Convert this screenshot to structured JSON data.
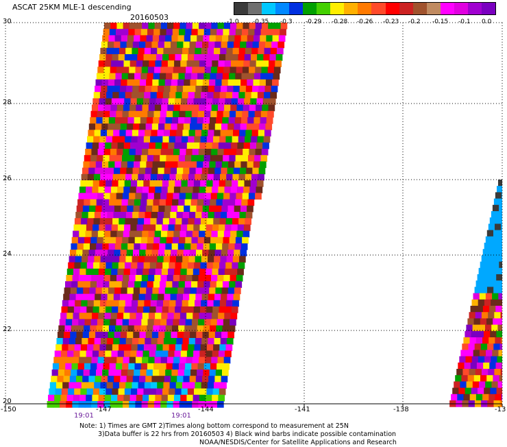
{
  "header": {
    "title": "ASCAT 25KM MLE-1 descending",
    "date": "20160503"
  },
  "colorbar": {
    "colors": [
      "#3a3a3a",
      "#6f6f6f",
      "#00c8ff",
      "#0088ff",
      "#0030e0",
      "#00a000",
      "#44d000",
      "#ffee00",
      "#ffb000",
      "#ff7a00",
      "#ff4a2a",
      "#ff0000",
      "#cc2222",
      "#a0522d",
      "#c08a60",
      "#ff00ff",
      "#e000e0",
      "#a000d0",
      "#7a00c0"
    ],
    "labels": [
      "-1.0",
      "-0.35",
      "-0.3",
      "-0.29",
      "-0.28",
      "-0.26",
      "-0.23",
      "-0.2",
      "-0.15",
      "-0.1",
      "0.0"
    ]
  },
  "axes": {
    "lat_labels": [
      "30",
      "28",
      "26",
      "24",
      "22",
      "20"
    ],
    "lon_labels": [
      "-150",
      "-147",
      "-144",
      "-141",
      "-138",
      "-13"
    ]
  },
  "times": [
    "19:01",
    "19:01"
  ],
  "notes": [
    "Note: 1) Times are GMT 2)Times along bottom correspond to measurement at 25N",
    "3)Data buffer is 22 hrs from 20160503 4) Black wind barbs indicate possible contamination",
    "NOAA/NESDIS/Center for Satellite Applications and Research"
  ]
}
